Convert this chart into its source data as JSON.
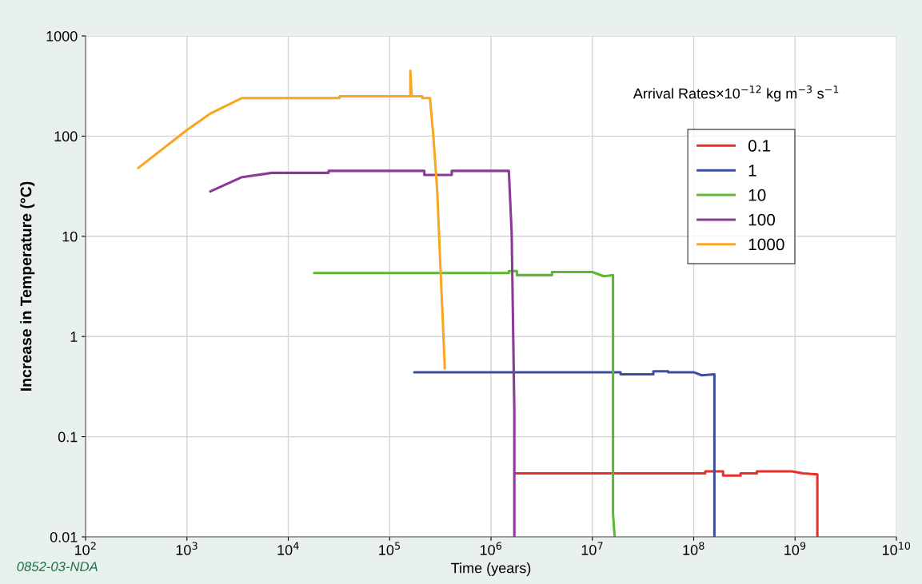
{
  "chart_data": {
    "type": "line",
    "xlabel": "Time (years)",
    "ylabel": "Increase in Temperature (°C)",
    "legend_title": "Arrival Rates×10$^{−12}$ kg m$^{−3}$ s$^{−1}$",
    "log": "xy",
    "grid": true,
    "legend": "top right",
    "marker": "none",
    "line_style": "solid",
    "xlim": [
      100,
      10000000000
    ],
    "ylim": [
      0.01,
      1000
    ],
    "xticks": [
      {
        "value": 100,
        "label": "10$^{2}$"
      },
      {
        "value": 1000,
        "label": "10$^{3}$"
      },
      {
        "value": 10000,
        "label": "10$^{4}$"
      },
      {
        "value": 100000,
        "label": "10$^{5}$"
      },
      {
        "value": 1000000,
        "label": "10$^{6}$"
      },
      {
        "value": 10000000,
        "label": "10$^{7}$"
      },
      {
        "value": 100000000,
        "label": "10$^{8}$"
      },
      {
        "value": 1000000000,
        "label": "10$^{9}$"
      },
      {
        "value": 10000000000,
        "label": "10$^{10}$"
      }
    ],
    "yticks": [
      0.01,
      0.1,
      1,
      10,
      100,
      1000
    ],
    "annotations": [
      "0852-03-NDA"
    ],
    "series": [
      {
        "name": "0.1",
        "color": "#e8302a",
        "x": [
          1700000,
          130000000,
          130000000,
          195000000,
          195000000,
          290000000,
          290000000,
          420000000,
          420000000,
          930000000,
          1200000000,
          1660000000,
          1660000000
        ],
        "values": [
          0.043,
          0.043,
          0.045,
          0.045,
          0.041,
          0.041,
          0.043,
          0.043,
          0.045,
          0.045,
          0.043,
          0.042,
          0.01
        ]
      },
      {
        "name": "1",
        "color": "#3d4da0",
        "x": [
          175000,
          19000000,
          19000000,
          40000000,
          40000000,
          56000000,
          56000000,
          100000000,
          120000000,
          160000000,
          160000000
        ],
        "values": [
          0.44,
          0.44,
          0.42,
          0.42,
          0.45,
          0.45,
          0.44,
          0.44,
          0.41,
          0.42,
          0.01
        ]
      },
      {
        "name": "10",
        "color": "#5cb833",
        "x": [
          18000,
          1500000,
          1500000,
          1800000,
          1800000,
          4000000,
          4000000,
          10000000,
          13000000,
          16000000,
          16000000,
          16000000,
          16000000,
          16600000
        ],
        "values": [
          4.3,
          4.3,
          4.5,
          4.5,
          4.1,
          4.1,
          4.4,
          4.4,
          4.0,
          4.1,
          2.2,
          0.28,
          0.017,
          0.01
        ]
      },
      {
        "name": "100",
        "color": "#8b3a98",
        "x": [
          1700,
          3500,
          6900,
          25000,
          25000,
          220000,
          220000,
          410000,
          410000,
          1500000,
          1600000,
          1700000,
          1700000
        ],
        "values": [
          28,
          39,
          43,
          43,
          45,
          45,
          41,
          41,
          45,
          45,
          10.7,
          0.18,
          0.01
        ]
      },
      {
        "name": "1000",
        "color": "#f9a623",
        "x": [
          330,
          1000,
          1700,
          3500,
          32000,
          32000,
          160000,
          160000,
          165000,
          210000,
          210000,
          250000,
          270000,
          295000,
          320000,
          335000,
          350000
        ],
        "values": [
          48,
          115,
          168,
          240,
          240,
          250,
          250,
          450,
          250,
          250,
          240,
          240,
          100,
          28,
          4,
          1.4,
          0.48
        ]
      }
    ]
  }
}
